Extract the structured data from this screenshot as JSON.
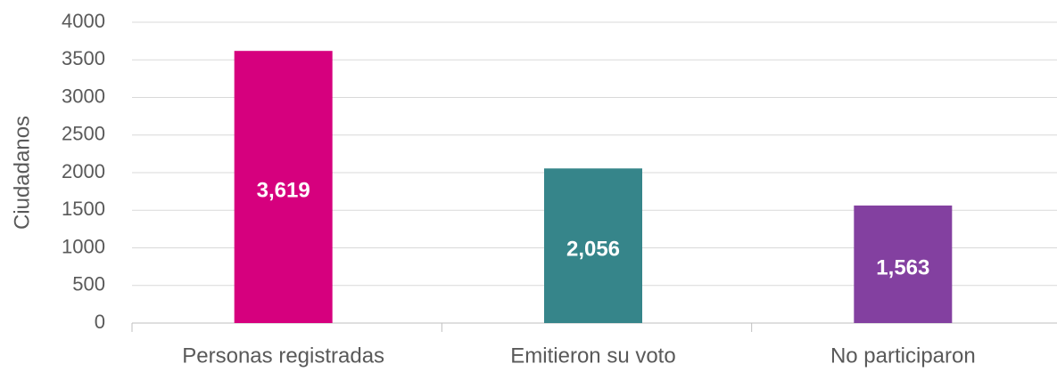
{
  "chart_data": {
    "type": "bar",
    "y_label": "Ciudadanos",
    "categories": [
      "Personas registradas",
      "Emitieron su voto",
      "No participaron"
    ],
    "values": [
      3619,
      2056,
      1563
    ],
    "value_labels": [
      "3,619",
      "2,056",
      "1,563"
    ],
    "colors": [
      "#d6007e",
      "#36858a",
      "#8340a0"
    ],
    "ylim": [
      0,
      4000
    ],
    "yticks": [
      0,
      500,
      1000,
      1500,
      2000,
      2500,
      3000,
      3500,
      4000
    ],
    "grid": true
  }
}
